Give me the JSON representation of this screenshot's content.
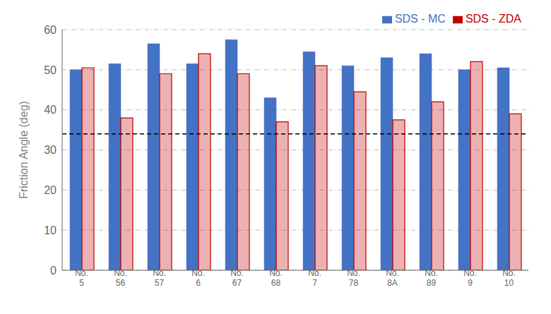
{
  "chart_data": {
    "type": "bar",
    "ylabel": "Friction Angle (deg)",
    "categories": [
      "No.\n5",
      "No.\n56",
      "No.\n57",
      "No.\n6",
      "No.\n67",
      "No.\n68",
      "No.\n7",
      "No.\n78",
      "No.\n8A",
      "No.\n89",
      "No.\n9",
      "No.\n10"
    ],
    "series": [
      {
        "name": "SDS - MC",
        "color": "#4472C4",
        "values": [
          50.0,
          51.5,
          56.5,
          51.5,
          57.5,
          43.0,
          54.5,
          51.0,
          53.0,
          54.0,
          50.0,
          50.5
        ]
      },
      {
        "name": "SDS - ZDA",
        "color": "#C00000",
        "values": [
          50.5,
          38.0,
          49.0,
          54.0,
          49.0,
          37.0,
          51.0,
          44.5,
          37.5,
          42.0,
          52.0,
          39.0
        ]
      }
    ],
    "hline": 34,
    "ylim": [
      0,
      60
    ],
    "yticks": [
      0,
      10,
      20,
      30,
      40,
      50,
      60
    ],
    "grid": true,
    "legend": "upper right"
  }
}
